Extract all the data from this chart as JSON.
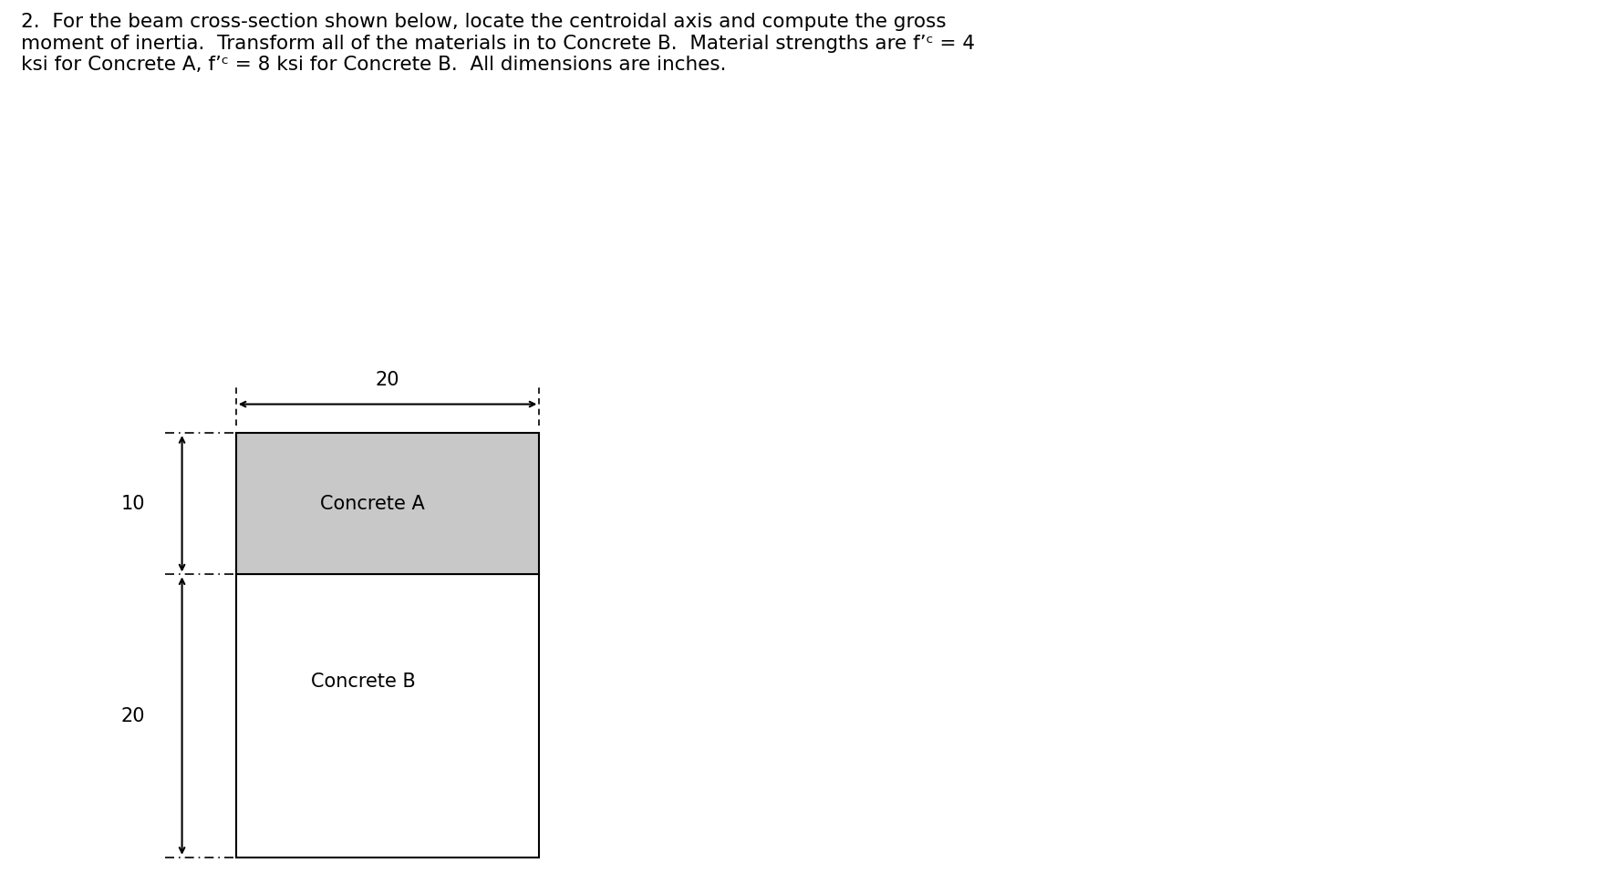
{
  "title_text": "2.  For the beam cross-section shown below, locate the centroidal axis and compute the gross\nmoment of inertia.  Transform all of the materials in to Concrete B.  Material strengths are f’ᶜ = 4\nksi for Concrete A, f’ᶜ = 8 ksi for Concrete B.  All dimensions are inches.",
  "title_fontsize": 15.5,
  "concrete_a_label": "Concrete A",
  "concrete_b_label": "Concrete B",
  "dim_20h_label": "20",
  "dim_10_label": "10",
  "dim_20v_label": "20",
  "concrete_a_color": "#c8c8c8",
  "concrete_b_color": "#ffffff",
  "rect_border_color": "#000000",
  "dim_line_color": "#000000",
  "dash_dot_color": "#000000",
  "text_color": "#000000",
  "background_color": "#ffffff",
  "label_fontsize": 15,
  "dim_fontsize": 15
}
